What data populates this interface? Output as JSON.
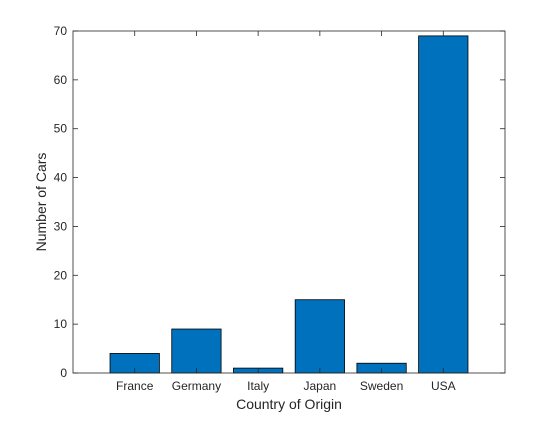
{
  "chart_data": {
    "type": "bar",
    "title": "",
    "xlabel": "Country of Origin",
    "ylabel": "Number of Cars",
    "categories": [
      "France",
      "Germany",
      "Italy",
      "Japan",
      "Sweden",
      "USA"
    ],
    "values": [
      4,
      9,
      1,
      15,
      2,
      69
    ],
    "ylim": [
      0,
      70
    ],
    "yticks": [
      0,
      10,
      20,
      30,
      40,
      50,
      60,
      70
    ],
    "grid": false,
    "legend": "none",
    "colors": {
      "bar_fill": "#0072BD",
      "bar_edge": "#000000",
      "axis": "#262626",
      "background": "#ffffff"
    }
  }
}
